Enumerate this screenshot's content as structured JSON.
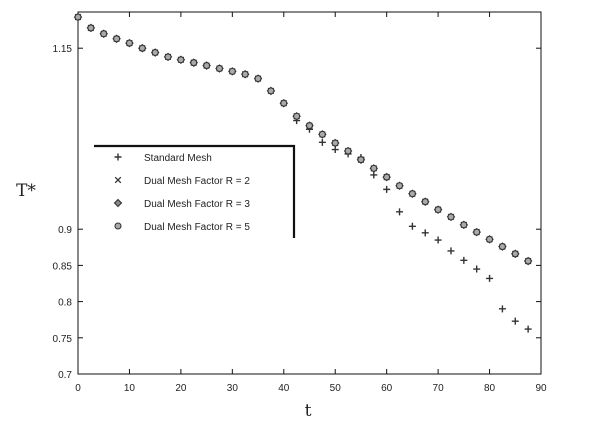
{
  "chart_data": {
    "type": "scatter",
    "title": "",
    "xlabel": "t",
    "ylabel": "T*",
    "xlim": [
      0,
      90
    ],
    "ylim": [
      0.7,
      1.2
    ],
    "grid": false,
    "legend_position": "center-left",
    "x_tick_labels": [
      "0",
      "10",
      "20",
      "30",
      "40",
      "50",
      "60",
      "70",
      "80",
      "90"
    ],
    "y_tick_labels": [
      "0.7",
      "0.75",
      "0.8",
      "0.85",
      "0.9",
      "1.15"
    ],
    "series": [
      {
        "name": "Standard Mesh",
        "marker": "+",
        "points": [
          [
            0,
            1.193
          ],
          [
            2.5,
            1.178
          ],
          [
            5,
            1.17
          ],
          [
            7.5,
            1.163
          ],
          [
            10,
            1.157
          ],
          [
            12.5,
            1.15
          ],
          [
            15,
            1.144
          ],
          [
            17.5,
            1.138
          ],
          [
            20,
            1.134
          ],
          [
            22.5,
            1.13
          ],
          [
            25,
            1.126
          ],
          [
            27.5,
            1.122
          ],
          [
            30,
            1.118
          ],
          [
            32.5,
            1.114
          ],
          [
            35,
            1.108
          ],
          [
            37.5,
            1.091
          ],
          [
            40,
            1.074
          ],
          [
            42.5,
            1.05
          ],
          [
            45,
            1.038
          ],
          [
            47.5,
            1.02
          ],
          [
            50,
            1.01
          ],
          [
            52.5,
            1.004
          ],
          [
            55,
            0.999
          ],
          [
            57.5,
            0.975
          ],
          [
            60,
            0.955
          ],
          [
            62.5,
            0.924
          ],
          [
            65,
            0.904
          ],
          [
            67.5,
            0.895
          ],
          [
            70,
            0.885
          ],
          [
            72.5,
            0.87
          ],
          [
            75,
            0.857
          ],
          [
            77.5,
            0.845
          ],
          [
            80,
            0.832
          ],
          [
            82.5,
            0.79
          ],
          [
            85,
            0.773
          ],
          [
            87.5,
            0.762
          ]
        ]
      },
      {
        "name": "Dual Mesh Factor R = 2",
        "marker": "x",
        "points": [
          [
            0,
            1.193
          ],
          [
            2.5,
            1.178
          ],
          [
            5,
            1.17
          ],
          [
            7.5,
            1.163
          ],
          [
            10,
            1.157
          ],
          [
            12.5,
            1.15
          ],
          [
            15,
            1.144
          ],
          [
            17.5,
            1.138
          ],
          [
            20,
            1.134
          ],
          [
            22.5,
            1.13
          ],
          [
            25,
            1.126
          ],
          [
            27.5,
            1.122
          ],
          [
            30,
            1.118
          ],
          [
            32.5,
            1.114
          ],
          [
            35,
            1.108
          ],
          [
            37.5,
            1.091
          ],
          [
            40,
            1.074
          ],
          [
            42.5,
            1.056
          ],
          [
            45,
            1.043
          ],
          [
            47.5,
            1.031
          ],
          [
            50,
            1.019
          ],
          [
            52.5,
            1.008
          ],
          [
            55,
            0.996
          ],
          [
            57.5,
            0.984
          ],
          [
            60,
            0.972
          ],
          [
            62.5,
            0.96
          ],
          [
            65,
            0.949
          ],
          [
            67.5,
            0.938
          ],
          [
            70,
            0.927
          ],
          [
            72.5,
            0.917
          ],
          [
            75,
            0.906
          ],
          [
            77.5,
            0.896
          ],
          [
            80,
            0.886
          ],
          [
            82.5,
            0.876
          ],
          [
            85,
            0.866
          ],
          [
            87.5,
            0.856
          ]
        ]
      },
      {
        "name": "Dual Mesh Factor R = 3",
        "marker": "diamond",
        "points": [
          [
            0,
            1.193
          ],
          [
            2.5,
            1.178
          ],
          [
            5,
            1.17
          ],
          [
            7.5,
            1.163
          ],
          [
            10,
            1.157
          ],
          [
            12.5,
            1.15
          ],
          [
            15,
            1.144
          ],
          [
            17.5,
            1.138
          ],
          [
            20,
            1.134
          ],
          [
            22.5,
            1.13
          ],
          [
            25,
            1.126
          ],
          [
            27.5,
            1.122
          ],
          [
            30,
            1.118
          ],
          [
            32.5,
            1.114
          ],
          [
            35,
            1.108
          ],
          [
            37.5,
            1.091
          ],
          [
            40,
            1.074
          ],
          [
            42.5,
            1.056
          ],
          [
            45,
            1.043
          ],
          [
            47.5,
            1.031
          ],
          [
            50,
            1.019
          ],
          [
            52.5,
            1.008
          ],
          [
            55,
            0.996
          ],
          [
            57.5,
            0.984
          ],
          [
            60,
            0.972
          ],
          [
            62.5,
            0.96
          ],
          [
            65,
            0.949
          ],
          [
            67.5,
            0.938
          ],
          [
            70,
            0.927
          ],
          [
            72.5,
            0.917
          ],
          [
            75,
            0.906
          ],
          [
            77.5,
            0.896
          ],
          [
            80,
            0.886
          ],
          [
            82.5,
            0.876
          ],
          [
            85,
            0.866
          ],
          [
            87.5,
            0.856
          ]
        ]
      },
      {
        "name": "Dual Mesh Factor R = 5",
        "marker": "circle",
        "points": [
          [
            0,
            1.193
          ],
          [
            2.5,
            1.178
          ],
          [
            5,
            1.17
          ],
          [
            7.5,
            1.163
          ],
          [
            10,
            1.157
          ],
          [
            12.5,
            1.15
          ],
          [
            15,
            1.144
          ],
          [
            17.5,
            1.138
          ],
          [
            20,
            1.134
          ],
          [
            22.5,
            1.13
          ],
          [
            25,
            1.126
          ],
          [
            27.5,
            1.122
          ],
          [
            30,
            1.118
          ],
          [
            32.5,
            1.114
          ],
          [
            35,
            1.108
          ],
          [
            37.5,
            1.091
          ],
          [
            40,
            1.074
          ],
          [
            42.5,
            1.056
          ],
          [
            45,
            1.043
          ],
          [
            47.5,
            1.031
          ],
          [
            50,
            1.019
          ],
          [
            52.5,
            1.008
          ],
          [
            55,
            0.996
          ],
          [
            57.5,
            0.984
          ],
          [
            60,
            0.972
          ],
          [
            62.5,
            0.96
          ],
          [
            65,
            0.949
          ],
          [
            67.5,
            0.938
          ],
          [
            70,
            0.927
          ],
          [
            72.5,
            0.917
          ],
          [
            75,
            0.906
          ],
          [
            77.5,
            0.896
          ],
          [
            80,
            0.886
          ],
          [
            82.5,
            0.876
          ],
          [
            85,
            0.866
          ],
          [
            87.5,
            0.856
          ]
        ]
      }
    ]
  }
}
